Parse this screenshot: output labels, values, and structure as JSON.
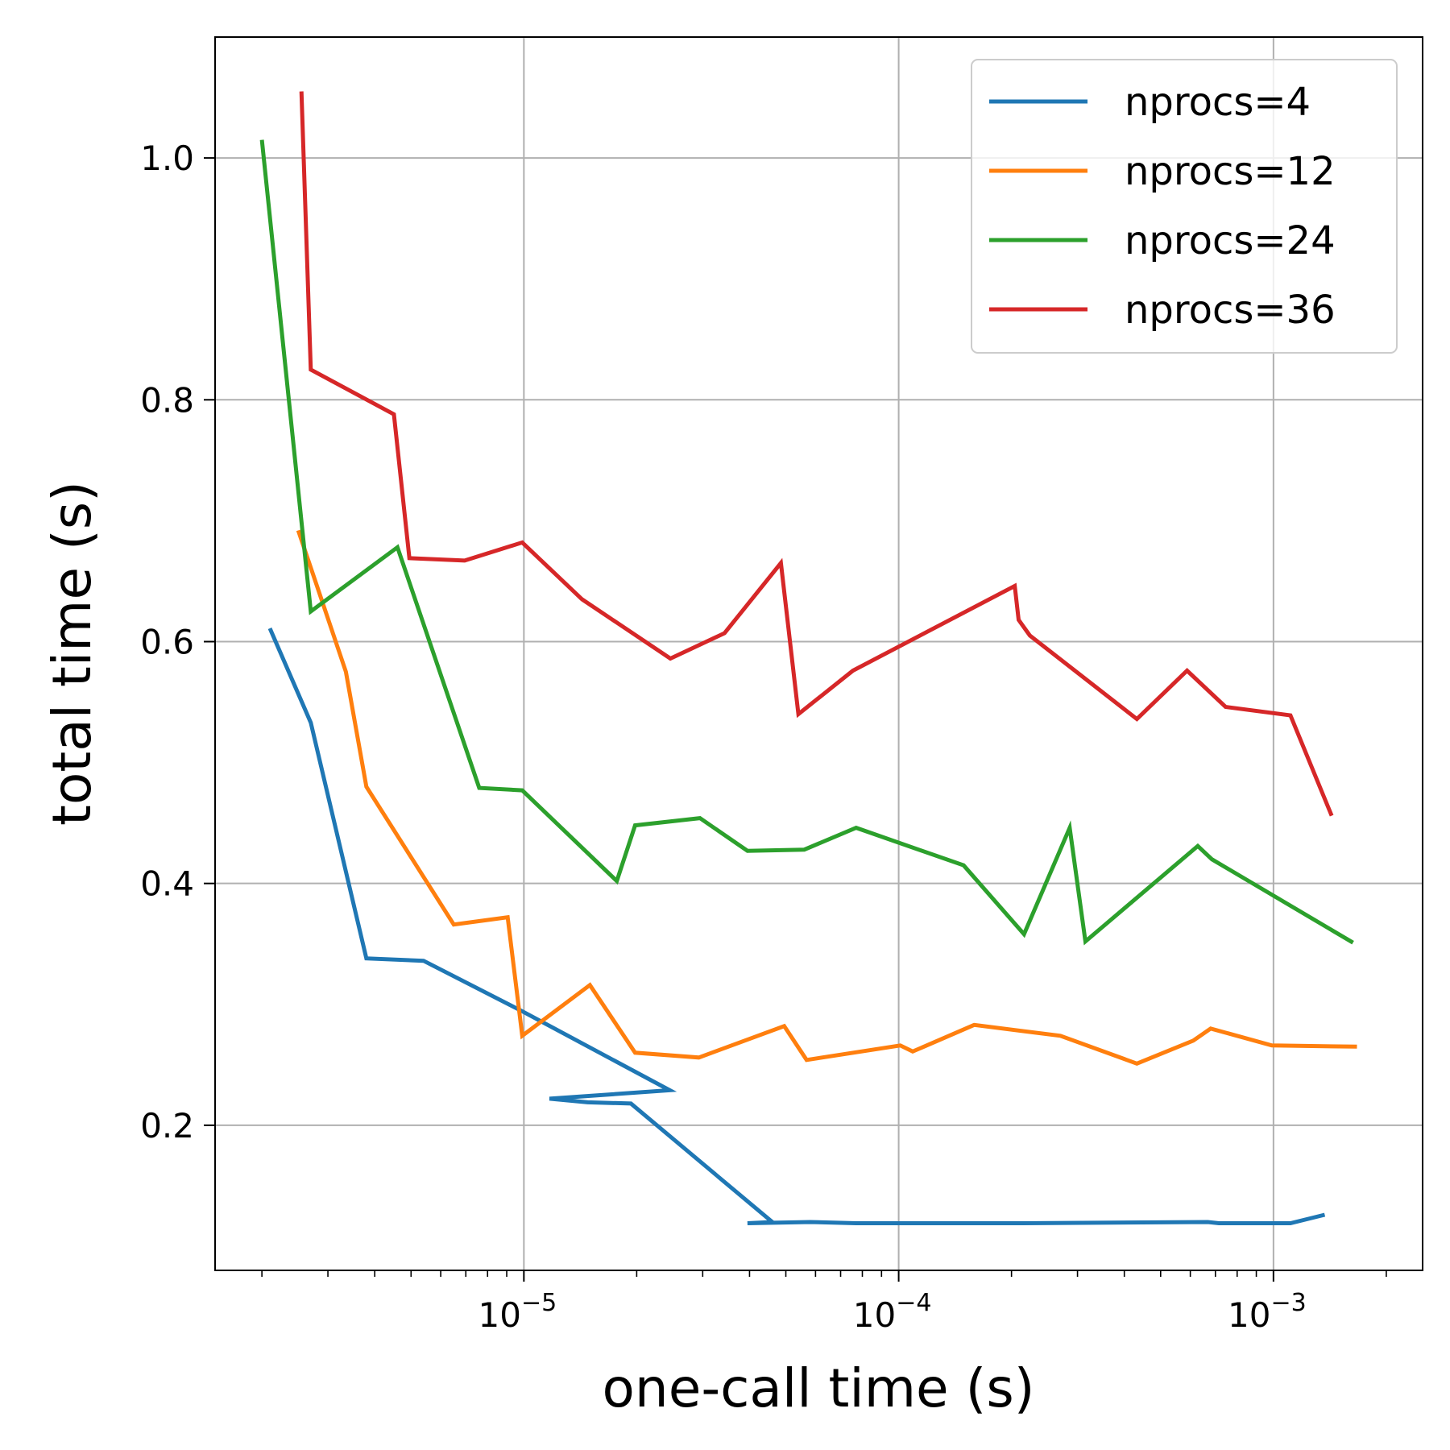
{
  "chart_data": {
    "type": "line",
    "title": "",
    "xlabel": "one-call time (s)",
    "ylabel": "total time (s)",
    "xscale": "log",
    "xlim": [
      1.5e-06,
      0.0025
    ],
    "ylim": [
      0.08,
      1.1
    ],
    "grid": true,
    "legend_position": "top-right",
    "xticks": [
      {
        "value": 1e-05,
        "base": "10",
        "exp": "−5"
      },
      {
        "value": 0.0001,
        "base": "10",
        "exp": "−4"
      },
      {
        "value": 0.001,
        "base": "10",
        "exp": "−3"
      }
    ],
    "yticks": [
      {
        "value": 0.2,
        "label": "0.2"
      },
      {
        "value": 0.4,
        "label": "0.4"
      },
      {
        "value": 0.6,
        "label": "0.6"
      },
      {
        "value": 0.8,
        "label": "0.8"
      },
      {
        "value": 1.0,
        "label": "1.0"
      }
    ],
    "series": [
      {
        "name": "nprocs=4",
        "color": "#1f77b4",
        "x": [
          2.1e-06,
          2.7e-06,
          3.8e-06,
          5.4e-06,
          9.8e-06,
          2.45e-05,
          1.17e-05,
          1.48e-05,
          1.93e-05,
          4.6e-05,
          3.95e-05,
          5.8e-05,
          7.7e-05,
          0.000117,
          0.00021,
          0.000668,
          0.000715,
          0.00111,
          0.00137
        ],
        "y": [
          0.611,
          0.533,
          0.338,
          0.336,
          0.295,
          0.229,
          0.222,
          0.219,
          0.218,
          0.12,
          0.119,
          0.12,
          0.119,
          0.119,
          0.119,
          0.12,
          0.119,
          0.119,
          0.126
        ]
      },
      {
        "name": "nprocs=12",
        "color": "#ff7f0e",
        "x": [
          2.5e-06,
          3.35e-06,
          3.8e-06,
          6.5e-06,
          9.05e-06,
          9.9e-06,
          1.5e-05,
          1.98e-05,
          2.93e-05,
          4.95e-05,
          5.68e-05,
          0.000101,
          0.000109,
          0.000159,
          0.00027,
          0.000432,
          0.000611,
          0.00068,
          0.00099,
          0.00167
        ],
        "y": [
          0.692,
          0.575,
          0.48,
          0.366,
          0.372,
          0.274,
          0.316,
          0.26,
          0.256,
          0.282,
          0.254,
          0.266,
          0.261,
          0.283,
          0.274,
          0.251,
          0.27,
          0.28,
          0.266,
          0.265
        ]
      },
      {
        "name": "nprocs=24",
        "color": "#2ca02c",
        "x": [
          2e-06,
          2.7e-06,
          4.6e-06,
          7.6e-06,
          9.9e-06,
          1.77e-05,
          1.98e-05,
          2.95e-05,
          3.95e-05,
          5.6e-05,
          7.7e-05,
          0.000149,
          0.000216,
          0.000286,
          0.000315,
          0.000628,
          0.000685,
          0.00163
        ],
        "y": [
          1.015,
          0.625,
          0.678,
          0.479,
          0.477,
          0.402,
          0.448,
          0.454,
          0.427,
          0.428,
          0.446,
          0.415,
          0.358,
          0.446,
          0.352,
          0.431,
          0.42,
          0.351
        ]
      },
      {
        "name": "nprocs=36",
        "color": "#d62728",
        "x": [
          2.55e-06,
          2.7e-06,
          4.5e-06,
          4.95e-06,
          6.95e-06,
          9.9e-06,
          1.43e-05,
          2.46e-05,
          3.43e-05,
          4.85e-05,
          5.4e-05,
          7.55e-05,
          0.000204,
          0.000209,
          0.000224,
          0.000432,
          0.000588,
          0.000745,
          0.00111,
          0.00143
        ],
        "y": [
          1.055,
          0.825,
          0.788,
          0.669,
          0.667,
          0.682,
          0.635,
          0.586,
          0.607,
          0.665,
          0.54,
          0.576,
          0.646,
          0.618,
          0.605,
          0.536,
          0.576,
          0.546,
          0.539,
          0.456
        ]
      }
    ]
  }
}
